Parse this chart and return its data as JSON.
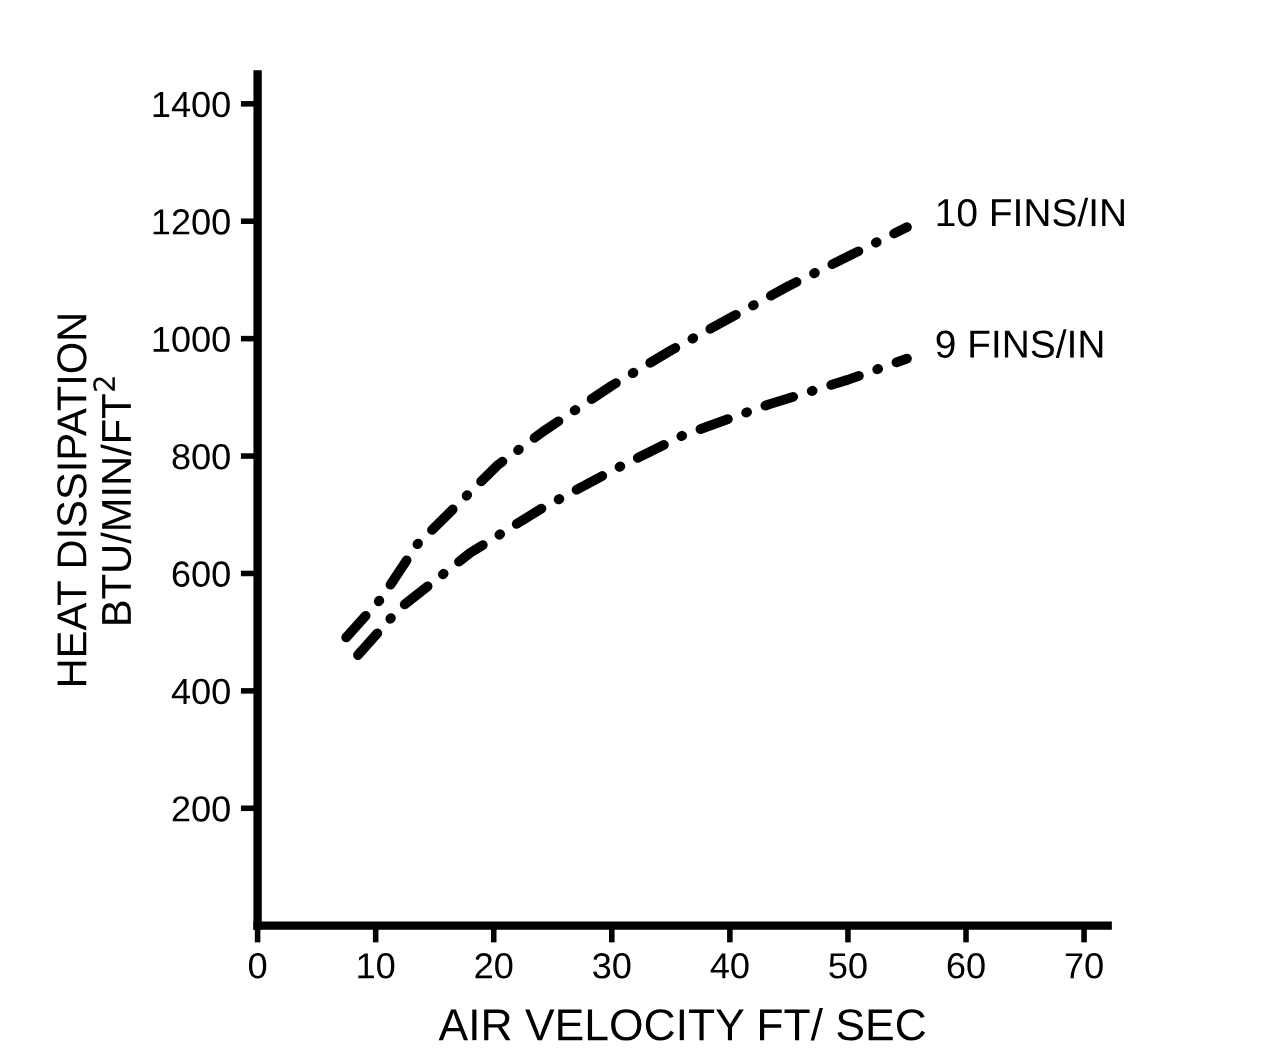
{
  "chart_data": {
    "type": "line",
    "xlabel": "AIR VELOCITY FT/ SEC",
    "ylabel": "HEAT DISSIPATION\nBTU/MIN/FT$^{2}$",
    "xlim": [
      0,
      72
    ],
    "ylim": [
      0,
      1450
    ],
    "xticks": [
      0,
      10,
      20,
      30,
      40,
      50,
      60,
      70
    ],
    "yticks": [
      200,
      400,
      600,
      800,
      1000,
      1200,
      1400
    ],
    "grid": false,
    "legend": false,
    "line_style": "dashdot",
    "marker": "none",
    "series": [
      {
        "name": "10 FINS/IN",
        "color": "#000000",
        "x": [
          7.5,
          10.5,
          13.5,
          20.3,
          24.2,
          30,
          35.1,
          45,
          55
        ],
        "values": [
          491,
          558,
          649,
          784,
          842,
          920,
          981,
          1090,
          1190
        ]
      },
      {
        "name": "9 FINS/IN",
        "color": "#000000",
        "x": [
          8.5,
          12,
          18,
          24,
          30.1,
          36,
          43.3,
          50,
          55
        ],
        "values": [
          461,
          540,
          635,
          710,
          776,
          835,
          888,
          930,
          966
        ]
      }
    ]
  }
}
